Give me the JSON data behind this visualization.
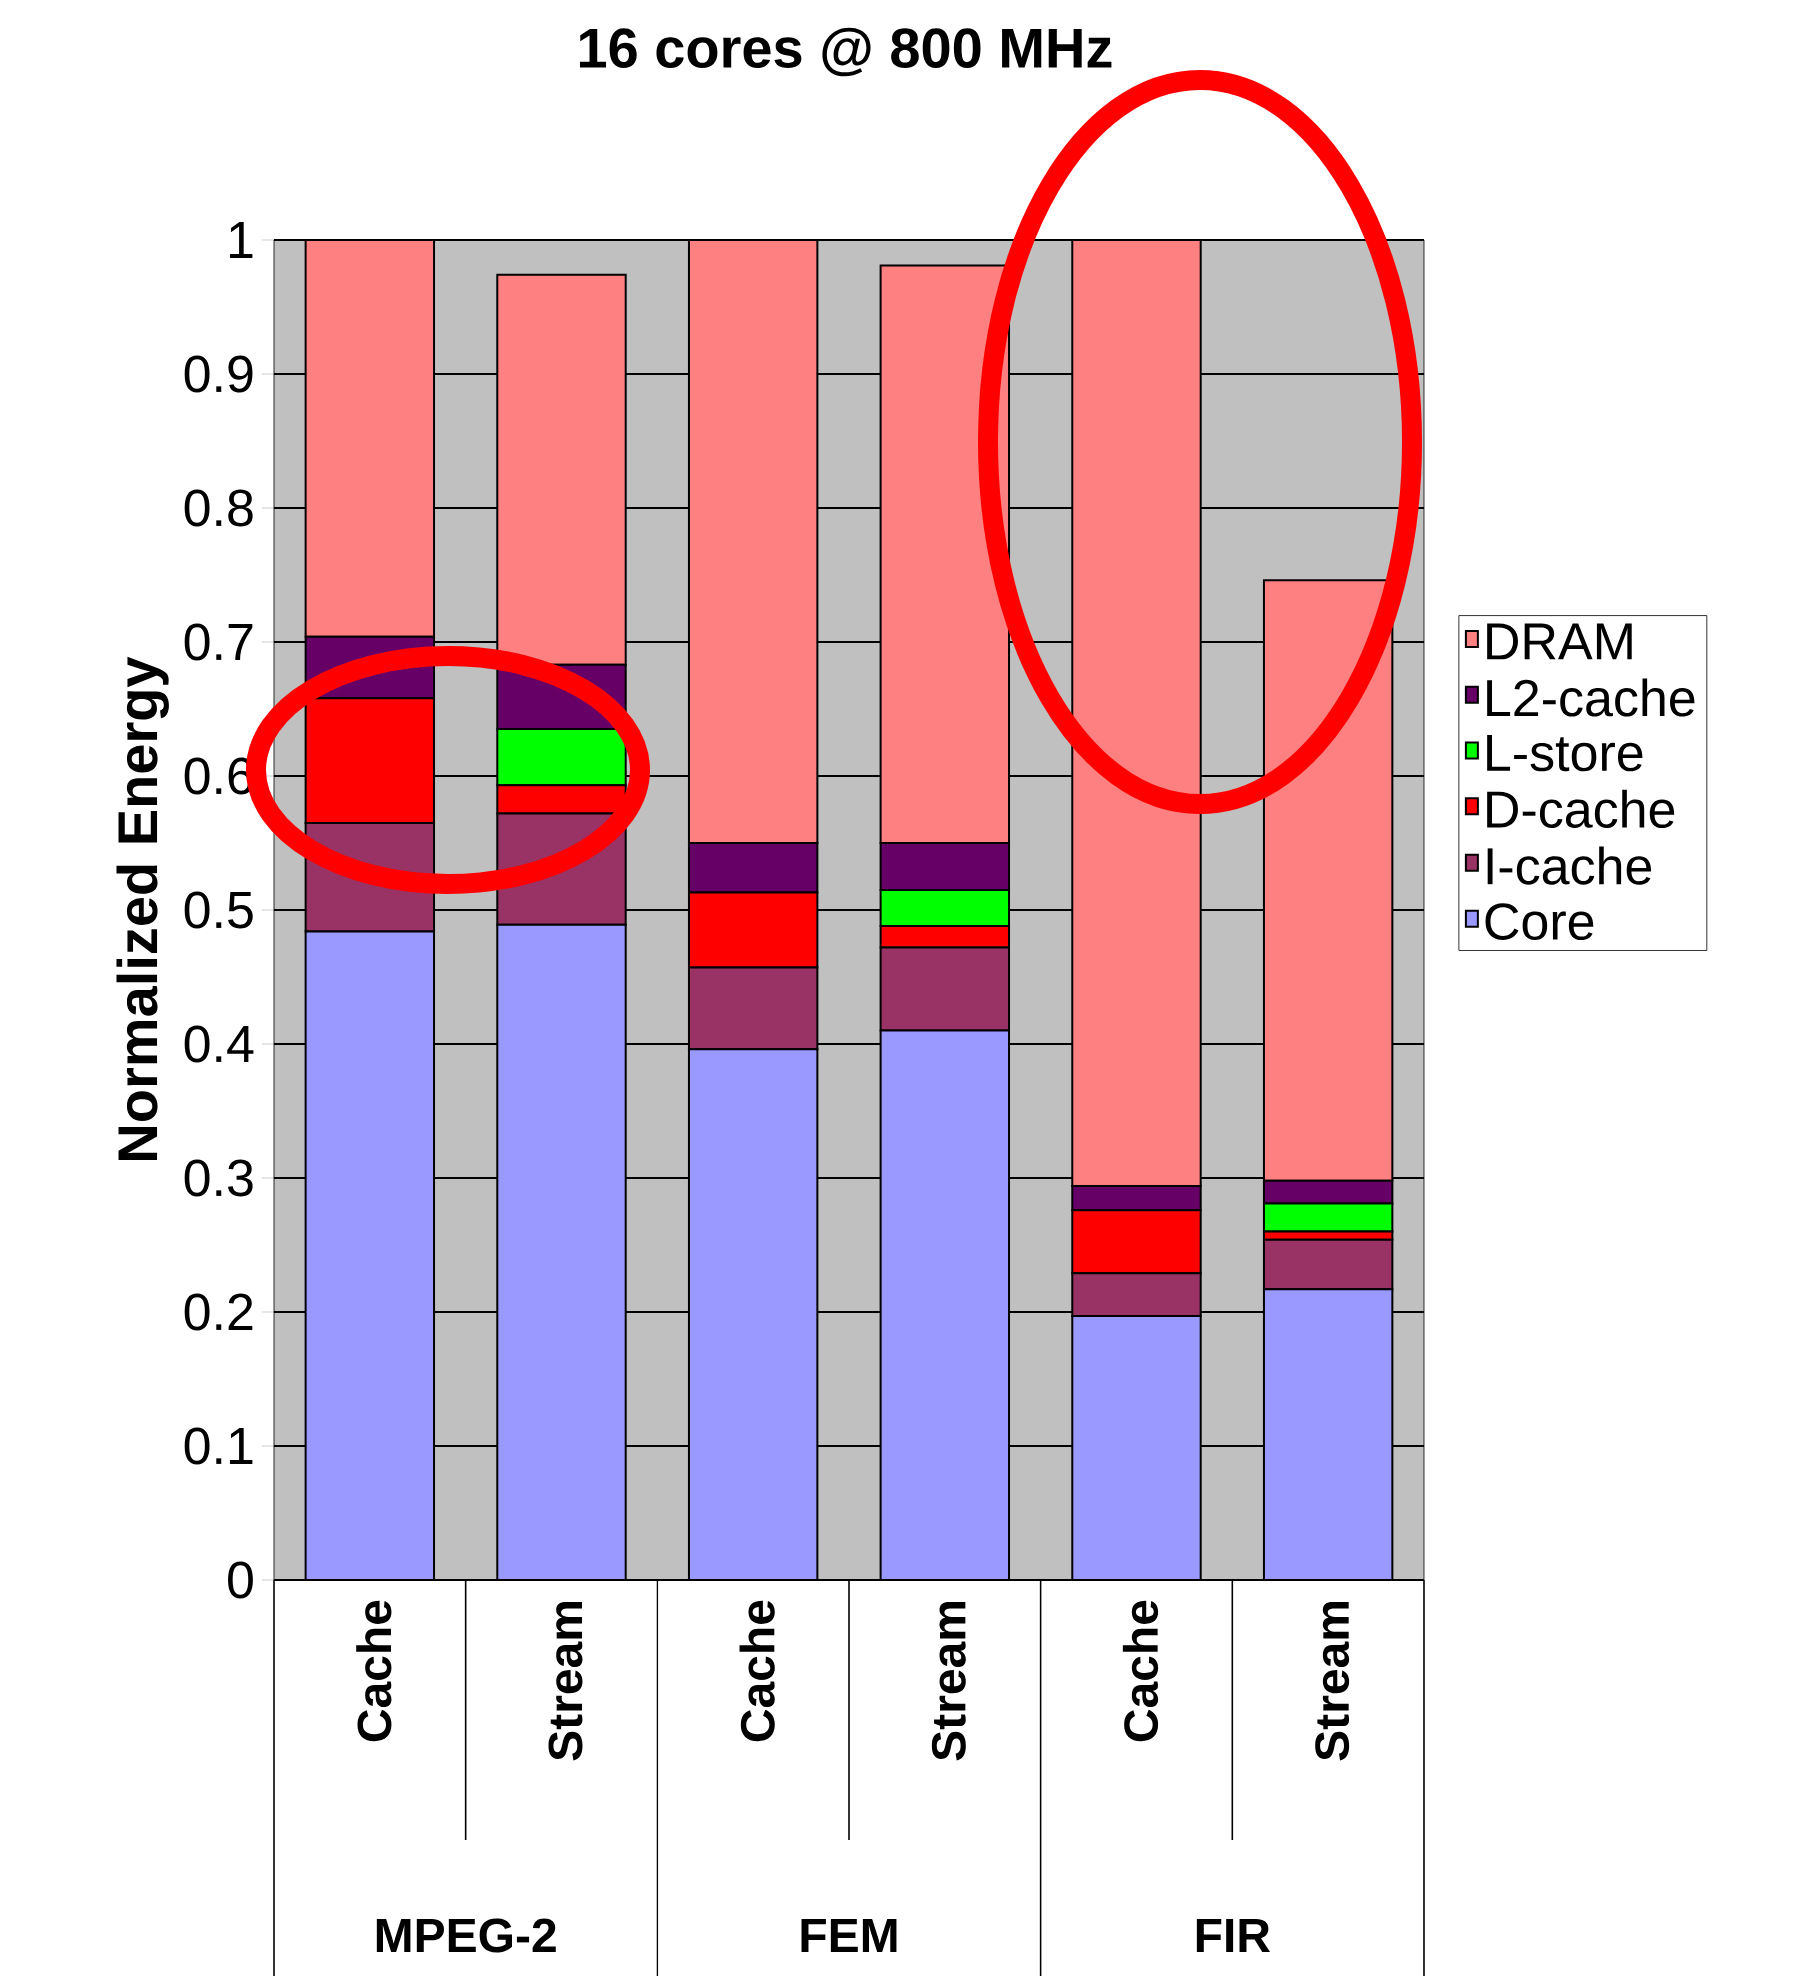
{
  "chart_data": {
    "type": "bar",
    "stacked": true,
    "title": "16 cores @ 800 MHz",
    "ylabel": "Normalized Energy",
    "categories": [
      "Cache",
      "Stream",
      "Cache",
      "Stream",
      "Cache",
      "Stream"
    ],
    "annotations": [
      "MPEG-2",
      "FEM",
      "FIR"
    ],
    "series": [
      {
        "name": "Core",
        "color": "#9999ff",
        "values": [
          0.484,
          0.489,
          0.396,
          0.41,
          0.197,
          0.217
        ]
      },
      {
        "name": "I-cache",
        "color": "#993366",
        "values": [
          0.081,
          0.083,
          0.061,
          0.062,
          0.032,
          0.037
        ]
      },
      {
        "name": "D-cache",
        "color": "#ff0000",
        "values": [
          0.093,
          0.021,
          0.056,
          0.016,
          0.047,
          0.006
        ]
      },
      {
        "name": "L-store",
        "color": "#00ff00",
        "values": [
          0,
          0.042,
          0,
          0.027,
          0,
          0.021
        ]
      },
      {
        "name": "L2-cache",
        "color": "#660066",
        "values": [
          0.046,
          0.048,
          0.037,
          0.035,
          0.018,
          0.017
        ]
      },
      {
        "name": "DRAM",
        "color": "#ff8080",
        "values": [
          0.296,
          0.291,
          0.45,
          0.431,
          0.706,
          0.448
        ]
      }
    ],
    "ylim": [
      0,
      1
    ],
    "yticks": [
      0,
      0.1,
      0.2,
      0.3,
      0.4,
      0.5,
      0.6,
      0.7,
      0.8,
      0.9,
      1
    ],
    "grid": "y",
    "legend": "right"
  }
}
